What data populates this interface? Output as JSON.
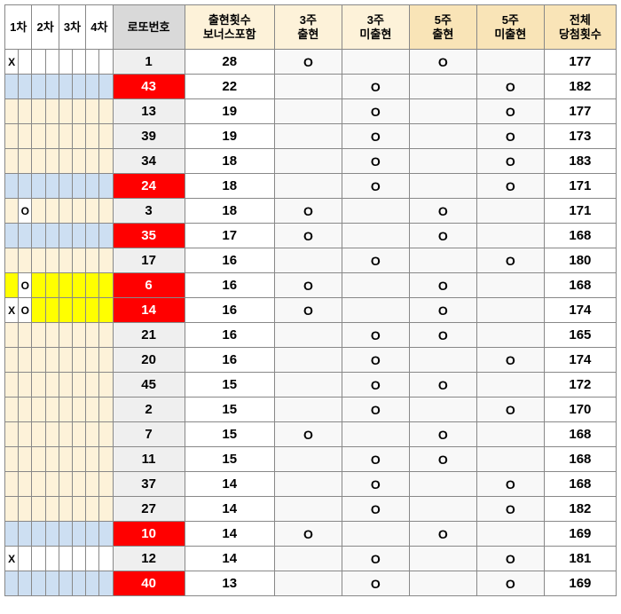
{
  "colors": {
    "header_tint_soft": "#fdf2d9",
    "header_tint_strong": "#f9e4b7",
    "lotto_header_bg": "#d9d9d9",
    "lotto_normal_bg": "#efefef",
    "lotto_hot_bg": "#ff0000",
    "lotto_hot_fg": "#ffffff",
    "blue_fill": "#cddff2",
    "yellow_fill": "#ffff00",
    "beige_fill": "#fdf2d9",
    "white": "#ffffff",
    "stat_tint": "#f8f8f8",
    "border": "#888888",
    "text": "#000000"
  },
  "headers": {
    "cha": [
      "1차",
      "2차",
      "3차",
      "4차"
    ],
    "lotto": "로또번호",
    "count": "출현횟수\n보너스포함",
    "w3a": "3주\n출현",
    "w3n": "3주\n미출현",
    "w5a": "5주\n출현",
    "w5n": "5주\n미출현",
    "total": "전체\n당첨횟수"
  },
  "rows": [
    {
      "marks": [
        "X",
        "",
        "",
        "",
        "",
        "",
        "",
        ""
      ],
      "fill": "white",
      "lotto": 1,
      "hot": false,
      "count": 28,
      "w3a": "O",
      "w3n": "",
      "w5a": "O",
      "w5n": "",
      "total": 177
    },
    {
      "marks": [
        "",
        "",
        "",
        "",
        "",
        "",
        "",
        ""
      ],
      "fill": "blue",
      "lotto": 43,
      "hot": true,
      "count": 22,
      "w3a": "",
      "w3n": "O",
      "w5a": "",
      "w5n": "O",
      "total": 182
    },
    {
      "marks": [
        "",
        "",
        "",
        "",
        "",
        "",
        "",
        ""
      ],
      "fill": "beige",
      "lotto": 13,
      "hot": false,
      "count": 19,
      "w3a": "",
      "w3n": "O",
      "w5a": "",
      "w5n": "O",
      "total": 177
    },
    {
      "marks": [
        "",
        "",
        "",
        "",
        "",
        "",
        "",
        ""
      ],
      "fill": "beige",
      "lotto": 39,
      "hot": false,
      "count": 19,
      "w3a": "",
      "w3n": "O",
      "w5a": "",
      "w5n": "O",
      "total": 173
    },
    {
      "marks": [
        "",
        "",
        "",
        "",
        "",
        "",
        "",
        ""
      ],
      "fill": "beige",
      "lotto": 34,
      "hot": false,
      "count": 18,
      "w3a": "",
      "w3n": "O",
      "w5a": "",
      "w5n": "O",
      "total": 183
    },
    {
      "marks": [
        "",
        "",
        "",
        "",
        "",
        "",
        "",
        ""
      ],
      "fill": "blue",
      "lotto": 24,
      "hot": true,
      "count": 18,
      "w3a": "",
      "w3n": "O",
      "w5a": "",
      "w5n": "O",
      "total": 171
    },
    {
      "marks": [
        "",
        "O",
        "",
        "",
        "",
        "",
        "",
        ""
      ],
      "fill": "beige",
      "lotto": 3,
      "hot": false,
      "count": 18,
      "w3a": "O",
      "w3n": "",
      "w5a": "O",
      "w5n": "",
      "total": 171
    },
    {
      "marks": [
        "",
        "",
        "",
        "",
        "",
        "",
        "",
        ""
      ],
      "fill": "blue",
      "lotto": 35,
      "hot": true,
      "count": 17,
      "w3a": "O",
      "w3n": "",
      "w5a": "O",
      "w5n": "",
      "total": 168
    },
    {
      "marks": [
        "",
        "",
        "",
        "",
        "",
        "",
        "",
        ""
      ],
      "fill": "beige",
      "lotto": 17,
      "hot": false,
      "count": 16,
      "w3a": "",
      "w3n": "O",
      "w5a": "",
      "w5n": "O",
      "total": 180
    },
    {
      "marks": [
        "",
        "O",
        "",
        "",
        "",
        "",
        "",
        ""
      ],
      "fill": "yellow",
      "lotto": 6,
      "hot": true,
      "count": 16,
      "w3a": "O",
      "w3n": "",
      "w5a": "O",
      "w5n": "",
      "total": 168
    },
    {
      "marks": [
        "X",
        "O",
        "",
        "",
        "",
        "",
        "",
        ""
      ],
      "fill": "yellow",
      "lotto": 14,
      "hot": true,
      "count": 16,
      "w3a": "O",
      "w3n": "",
      "w5a": "O",
      "w5n": "",
      "total": 174
    },
    {
      "marks": [
        "",
        "",
        "",
        "",
        "",
        "",
        "",
        ""
      ],
      "fill": "beige",
      "lotto": 21,
      "hot": false,
      "count": 16,
      "w3a": "",
      "w3n": "O",
      "w5a": "O",
      "w5n": "",
      "total": 165
    },
    {
      "marks": [
        "",
        "",
        "",
        "",
        "",
        "",
        "",
        ""
      ],
      "fill": "beige",
      "lotto": 20,
      "hot": false,
      "count": 16,
      "w3a": "",
      "w3n": "O",
      "w5a": "",
      "w5n": "O",
      "total": 174
    },
    {
      "marks": [
        "",
        "",
        "",
        "",
        "",
        "",
        "",
        ""
      ],
      "fill": "beige",
      "lotto": 45,
      "hot": false,
      "count": 15,
      "w3a": "",
      "w3n": "O",
      "w5a": "O",
      "w5n": "",
      "total": 172
    },
    {
      "marks": [
        "",
        "",
        "",
        "",
        "",
        "",
        "",
        ""
      ],
      "fill": "beige",
      "lotto": 2,
      "hot": false,
      "count": 15,
      "w3a": "",
      "w3n": "O",
      "w5a": "",
      "w5n": "O",
      "total": 170
    },
    {
      "marks": [
        "",
        "",
        "",
        "",
        "",
        "",
        "",
        ""
      ],
      "fill": "beige",
      "lotto": 7,
      "hot": false,
      "count": 15,
      "w3a": "O",
      "w3n": "",
      "w5a": "O",
      "w5n": "",
      "total": 168
    },
    {
      "marks": [
        "",
        "",
        "",
        "",
        "",
        "",
        "",
        ""
      ],
      "fill": "beige",
      "lotto": 11,
      "hot": false,
      "count": 15,
      "w3a": "",
      "w3n": "O",
      "w5a": "O",
      "w5n": "",
      "total": 168
    },
    {
      "marks": [
        "",
        "",
        "",
        "",
        "",
        "",
        "",
        ""
      ],
      "fill": "beige",
      "lotto": 37,
      "hot": false,
      "count": 14,
      "w3a": "",
      "w3n": "O",
      "w5a": "",
      "w5n": "O",
      "total": 168
    },
    {
      "marks": [
        "",
        "",
        "",
        "",
        "",
        "",
        "",
        ""
      ],
      "fill": "beige",
      "lotto": 27,
      "hot": false,
      "count": 14,
      "w3a": "",
      "w3n": "O",
      "w5a": "",
      "w5n": "O",
      "total": 182
    },
    {
      "marks": [
        "",
        "",
        "",
        "",
        "",
        "",
        "",
        ""
      ],
      "fill": "blue",
      "lotto": 10,
      "hot": true,
      "count": 14,
      "w3a": "O",
      "w3n": "",
      "w5a": "O",
      "w5n": "",
      "total": 169
    },
    {
      "marks": [
        "X",
        "",
        "",
        "",
        "",
        "",
        "",
        ""
      ],
      "fill": "white",
      "lotto": 12,
      "hot": false,
      "count": 14,
      "w3a": "",
      "w3n": "O",
      "w5a": "",
      "w5n": "O",
      "total": 181
    },
    {
      "marks": [
        "",
        "",
        "",
        "",
        "",
        "",
        "",
        ""
      ],
      "fill": "blue",
      "lotto": 40,
      "hot": true,
      "count": 13,
      "w3a": "",
      "w3n": "O",
      "w5a": "",
      "w5n": "O",
      "total": 169
    }
  ]
}
